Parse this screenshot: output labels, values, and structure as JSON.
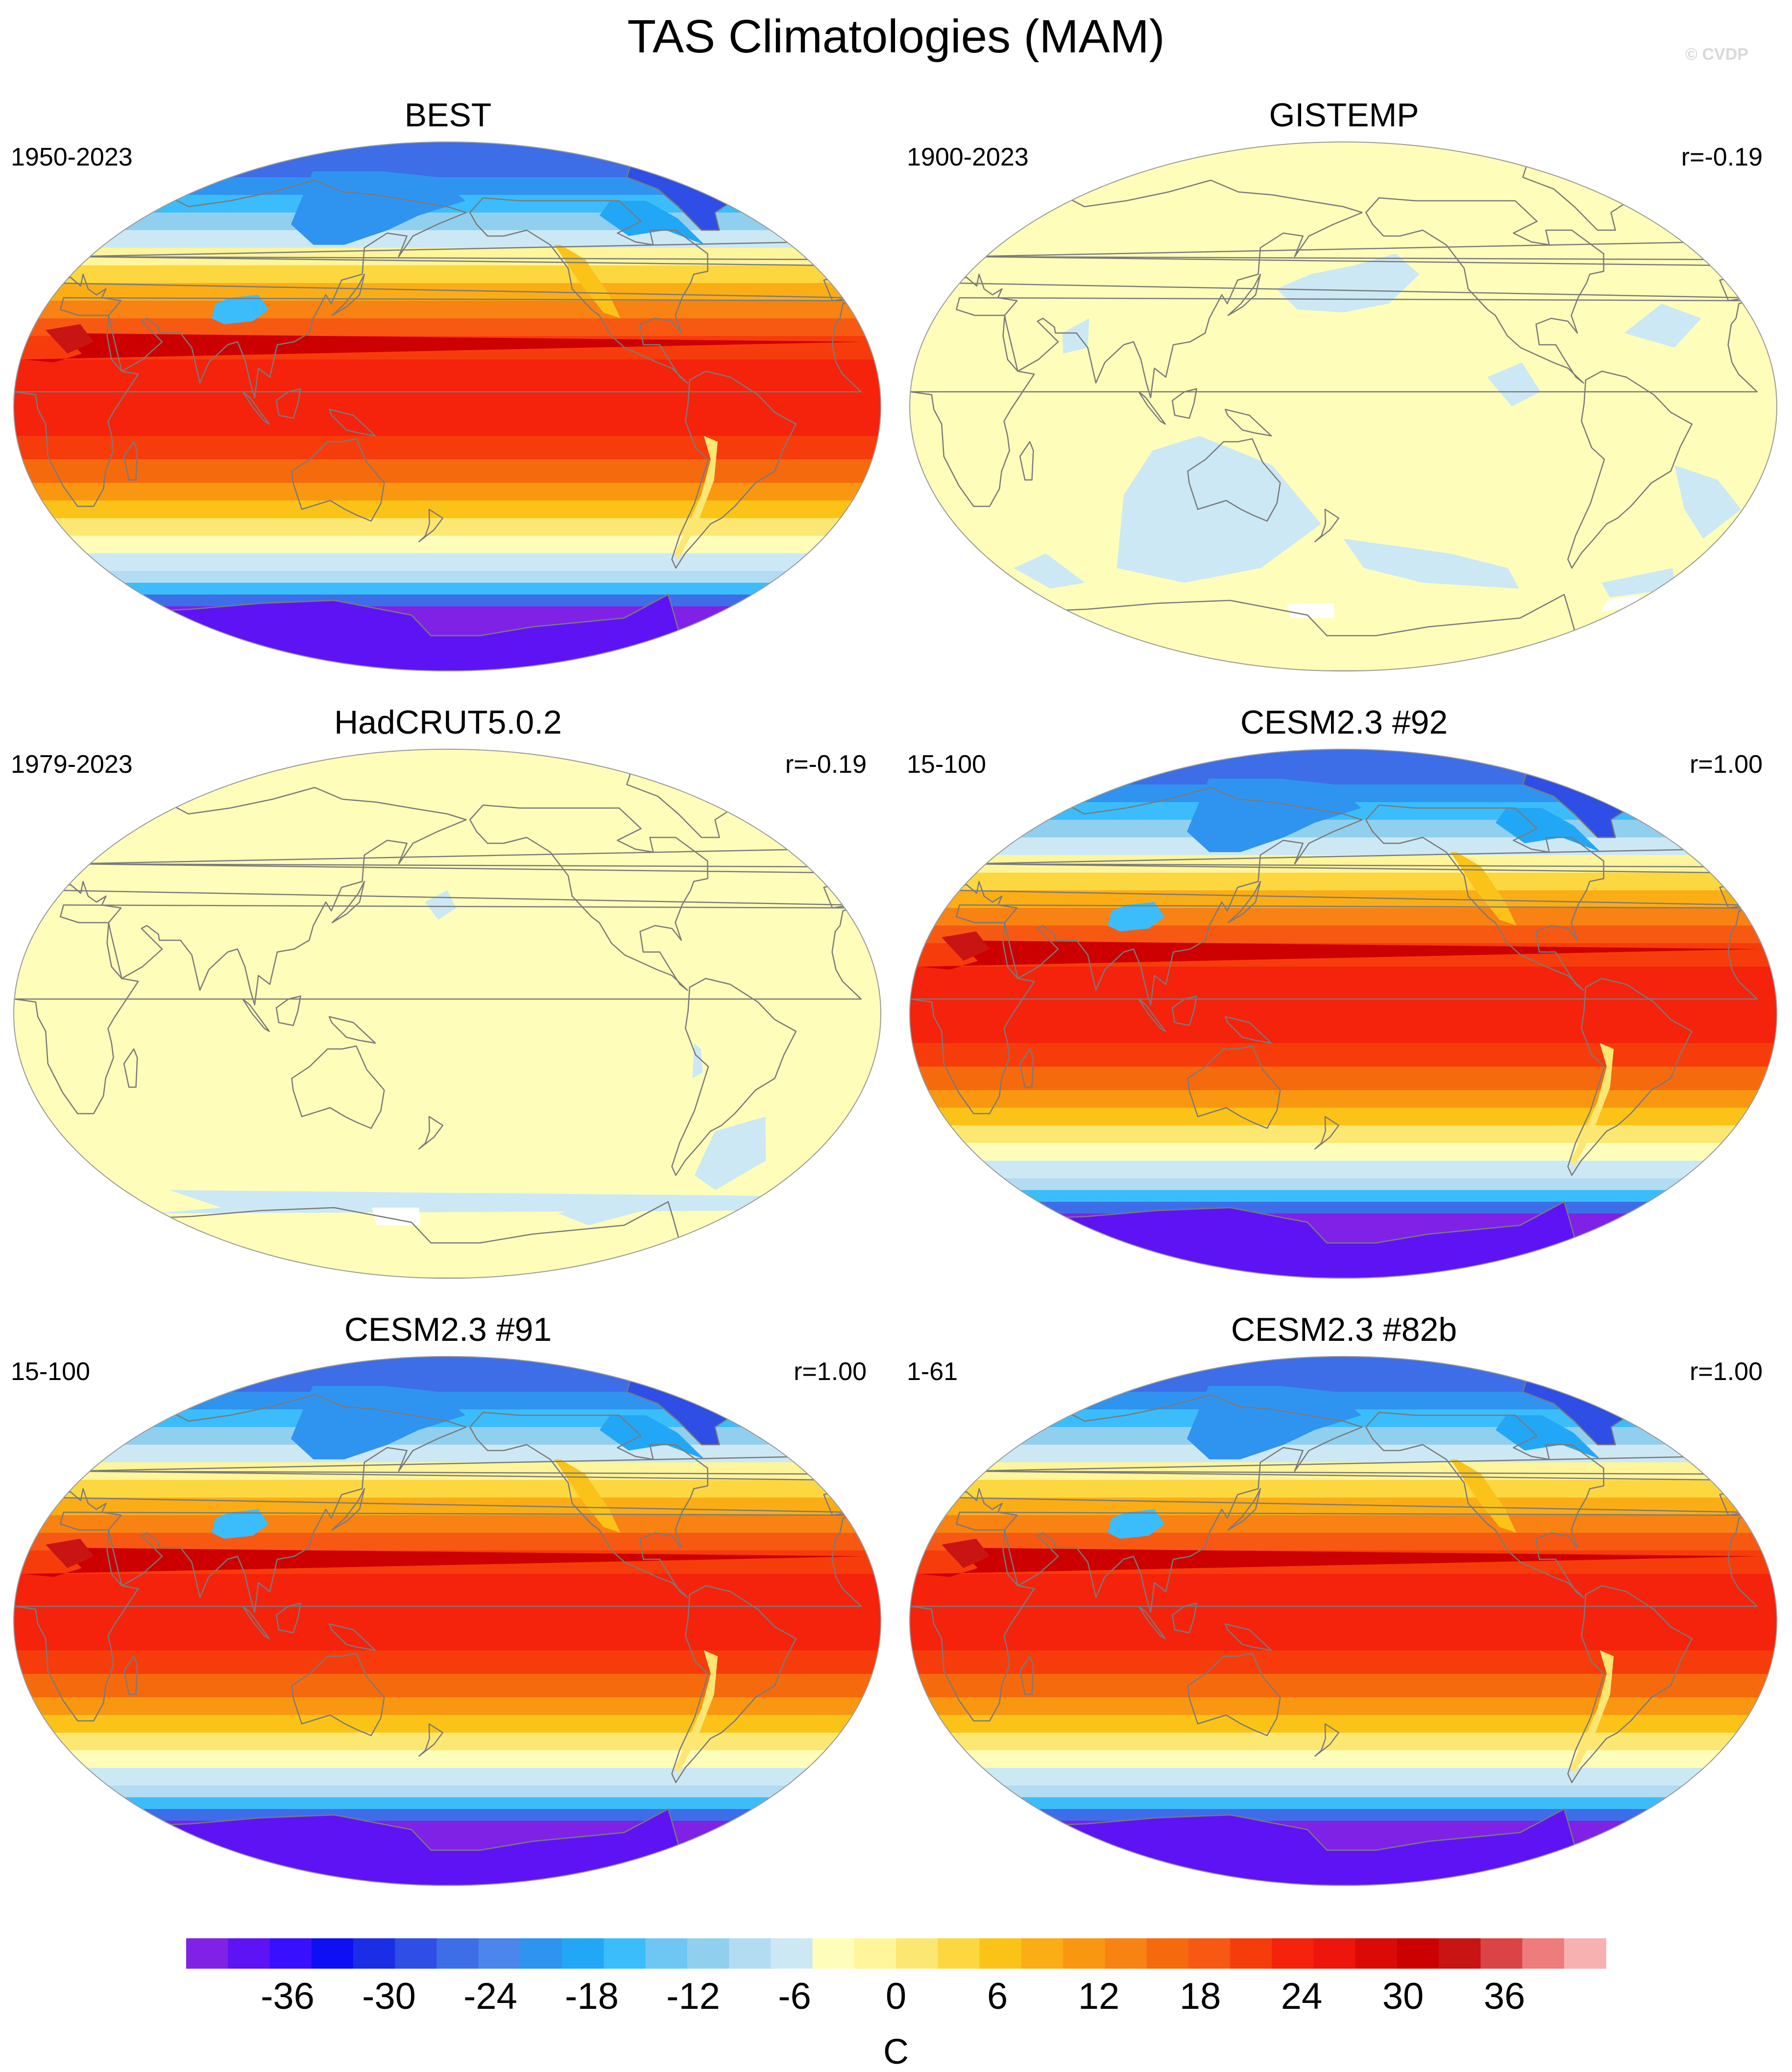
{
  "title": "TAS Climatologies (MAM)",
  "credit": "© CVDP",
  "colors": {
    "palette": [
      "#8021e6",
      "#5e13f5",
      "#3810ff",
      "#0f0ff5",
      "#1a2ee6",
      "#2e4ee6",
      "#3d6ee8",
      "#4a86ec",
      "#2f94f0",
      "#22a7f7",
      "#3bbdfc",
      "#6ec7f2",
      "#91cfee",
      "#b3dcf2",
      "#cce8f5",
      "#fefeba",
      "#fff59a",
      "#fde773",
      "#fdd740",
      "#fbc318",
      "#fbad16",
      "#f99810",
      "#f88212",
      "#f66a0e",
      "#f75912",
      "#f73c0b",
      "#f5220c",
      "#ee150c",
      "#dc0a06",
      "#cc0000",
      "#c91414",
      "#db4444",
      "#ee7c7c",
      "#f8b1b1"
    ],
    "land_outline": "#7a7a7a",
    "frame": "#9a9a9a"
  },
  "colorbar": {
    "ticks": [
      "-36",
      "-30",
      "-24",
      "-18",
      "-12",
      "-6",
      "0",
      "6",
      "12",
      "18",
      "24",
      "30",
      "36"
    ],
    "unit": "C",
    "range": [
      -42,
      42
    ],
    "step": 3
  },
  "panels": [
    {
      "name": "BEST",
      "years": "1950-2023",
      "r": "",
      "style": "full"
    },
    {
      "name": "GISTEMP",
      "years": "1900-2023",
      "r": "r=-0.19",
      "style": "gistemp"
    },
    {
      "name": "HadCRUT5.0.2",
      "years": "1979-2023",
      "r": "r=-0.19",
      "style": "hadcrut"
    },
    {
      "name": "CESM2.3 #92",
      "years": "15-100",
      "r": "r=1.00",
      "style": "full"
    },
    {
      "name": "CESM2.3 #91",
      "years": "15-100",
      "r": "r=1.00",
      "style": "full"
    },
    {
      "name": "CESM2.3 #82b",
      "years": "1-61",
      "r": "r=1.00",
      "style": "full"
    }
  ]
}
